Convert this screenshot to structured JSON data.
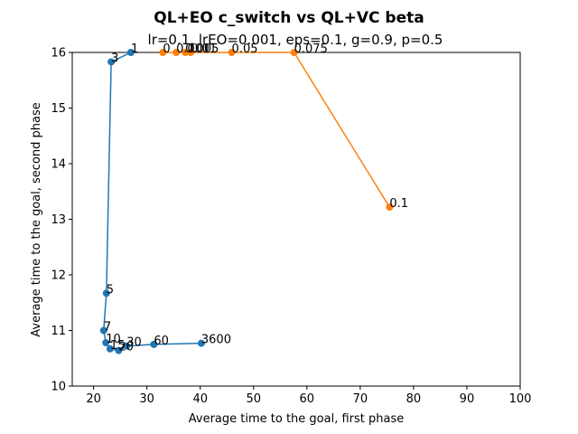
{
  "chart_data": {
    "type": "line",
    "title": "QL+EO c_switch vs QL+VC beta",
    "subtitle": "lr=0.1, lrEO=0.001, eps=0.1, g=0.9, p=0.5",
    "xlabel": "Average time to the goal, first phase",
    "ylabel": "Average time to the goal, second phase",
    "xlim": [
      16,
      100
    ],
    "ylim": [
      10,
      16
    ],
    "xticks": [
      20,
      30,
      40,
      50,
      60,
      70,
      80,
      90,
      100
    ],
    "yticks": [
      10,
      11,
      12,
      13,
      14,
      15,
      16
    ],
    "grid": false,
    "series": [
      {
        "color": "#1f77b4",
        "points": [
          {
            "x": 27.0,
            "y": 16.0,
            "label": "1"
          },
          {
            "x": 23.3,
            "y": 15.83,
            "label": "3"
          },
          {
            "x": 22.4,
            "y": 11.67,
            "label": "5"
          },
          {
            "x": 21.9,
            "y": 11.0,
            "label": "7"
          },
          {
            "x": 22.3,
            "y": 10.78,
            "label": "10"
          },
          {
            "x": 23.1,
            "y": 10.67,
            "label": "15"
          },
          {
            "x": 24.7,
            "y": 10.64,
            "label": "20"
          },
          {
            "x": 26.2,
            "y": 10.72,
            "label": "30"
          },
          {
            "x": 31.3,
            "y": 10.75,
            "label": "60"
          },
          {
            "x": 40.2,
            "y": 10.77,
            "label": "3600"
          }
        ]
      },
      {
        "color": "#ff7f0e",
        "points": [
          {
            "x": 33.0,
            "y": 16.0,
            "label": "0"
          },
          {
            "x": 35.5,
            "y": 16.0,
            "label": "0.001"
          },
          {
            "x": 37.2,
            "y": 16.0,
            "label": "0.005"
          },
          {
            "x": 38.2,
            "y": 16.0,
            "label": "0.01"
          },
          {
            "x": 45.9,
            "y": 16.0,
            "label": "0.05"
          },
          {
            "x": 57.6,
            "y": 16.0,
            "label": "0.075"
          },
          {
            "x": 75.5,
            "y": 13.22,
            "label": "0.1"
          }
        ]
      }
    ]
  }
}
